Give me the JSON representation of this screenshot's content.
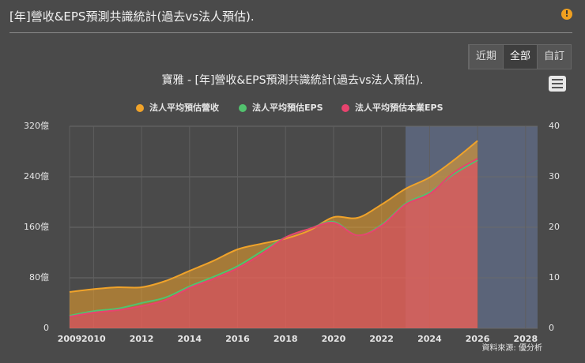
{
  "header": {
    "title": "[年]營收&EPS預測共識統計(過去vs法人預估)."
  },
  "buttons": [
    "近期",
    "全部",
    "自訂"
  ],
  "chart_data": {
    "type": "line",
    "title": "寶雅 - [年]營收&EPS預測共識統計(過去vs法人預估).",
    "x": [
      2009,
      2010,
      2011,
      2012,
      2013,
      2014,
      2015,
      2016,
      2017,
      2018,
      2019,
      2020,
      2021,
      2022,
      2023,
      2024,
      2025,
      2026
    ],
    "series": [
      {
        "name": "法人平均預估營收",
        "color": "#f0a32a",
        "area": true,
        "axis": "y",
        "values": [
          57.5,
          62,
          65,
          65,
          75,
          91,
          107,
          125,
          134,
          142,
          155,
          176,
          175,
          196,
          221,
          239,
          266,
          297
        ]
      },
      {
        "name": "法人平均預估EPS",
        "color": "#52c26e",
        "area": false,
        "axis": "y2",
        "values": [
          2.5,
          3.4,
          3.9,
          5.0,
          6.1,
          8.3,
          10.2,
          12.3,
          15.2,
          18.0,
          19.7,
          21.1,
          18.4,
          20.5,
          24.7,
          26.9,
          30.5,
          33.3
        ]
      },
      {
        "name": "法人平均預估本業EPS",
        "color": "#e8436e",
        "area": true,
        "axis": "y2",
        "values": [
          2.3,
          3.1,
          3.6,
          4.4,
          5.6,
          8.0,
          9.8,
          11.9,
          14.7,
          18.0,
          19.7,
          20.9,
          18.4,
          20.3,
          24.5,
          26.6,
          30.8,
          33.6
        ]
      }
    ],
    "xlim": [
      2009,
      2028.5
    ],
    "xticks": [
      2009,
      2010,
      2012,
      2014,
      2016,
      2018,
      2020,
      2022,
      2024,
      2026,
      2028
    ],
    "ylim": [
      0,
      320
    ],
    "yticks": [
      0,
      {
        "value": 80,
        "label": "80億"
      },
      {
        "value": 160,
        "label": "160億"
      },
      {
        "value": 240,
        "label": "240億"
      },
      {
        "value": 320,
        "label": "320億"
      }
    ],
    "y2lim": [
      0,
      40
    ],
    "y2ticks": [
      0,
      10,
      20,
      30,
      40
    ],
    "grid": true,
    "plot_band": {
      "from": 2023,
      "to": 2028.5,
      "color": "#5b6479"
    },
    "legend": "top",
    "credits": "資料來源: 優分析"
  }
}
